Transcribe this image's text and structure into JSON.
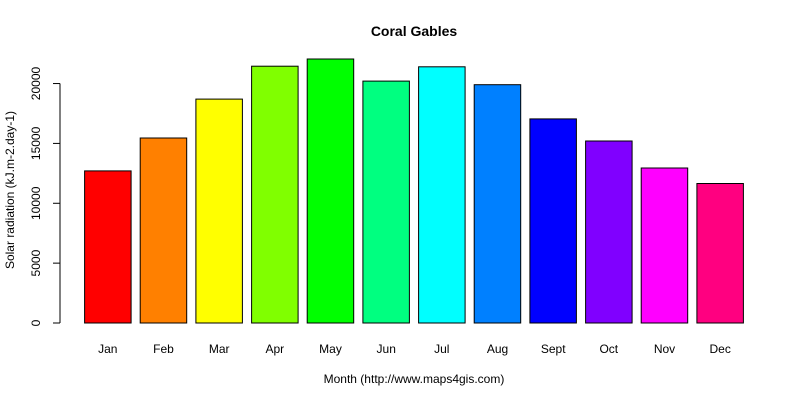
{
  "chart_data": {
    "type": "bar",
    "title": "Coral Gables",
    "xlabel": "Month (http://www.maps4gis.com)",
    "ylabel": "Solar radiation (kJ.m-2.day-1)",
    "categories": [
      "Jan",
      "Feb",
      "Mar",
      "Apr",
      "May",
      "Jun",
      "Jul",
      "Aug",
      "Sept",
      "Oct",
      "Nov",
      "Dec"
    ],
    "values": [
      12700,
      15450,
      18700,
      21450,
      22050,
      20200,
      21400,
      19900,
      17050,
      15200,
      12950,
      11650
    ],
    "colors": [
      "#FF0000",
      "#FF8000",
      "#FFFF00",
      "#80FF00",
      "#00FF00",
      "#00FF80",
      "#00FFFF",
      "#0080FF",
      "#0000FF",
      "#8000FF",
      "#FF00FF",
      "#FF0080"
    ],
    "yticks": [
      0,
      5000,
      10000,
      15000,
      20000
    ],
    "ylim": [
      0,
      22050
    ],
    "grid": false,
    "legend": "none"
  }
}
